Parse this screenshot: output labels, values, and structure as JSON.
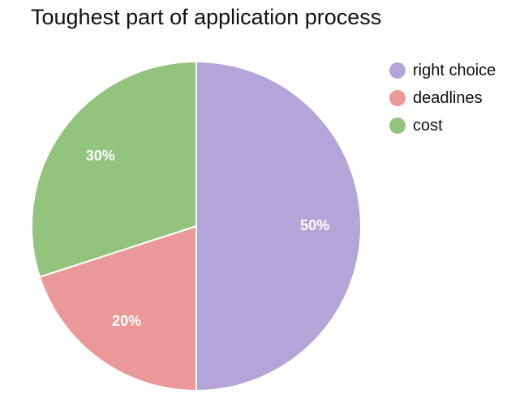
{
  "chart_data": {
    "type": "pie",
    "title": "Toughest part of application process",
    "categories": [
      "right choice",
      "deadlines",
      "cost"
    ],
    "values": [
      50,
      20,
      30
    ],
    "value_labels": [
      "50%",
      "20%",
      "30%"
    ],
    "colors": [
      "#b3a5d7",
      "#eb9898",
      "#93c47d"
    ],
    "legend_position": "top-right"
  }
}
